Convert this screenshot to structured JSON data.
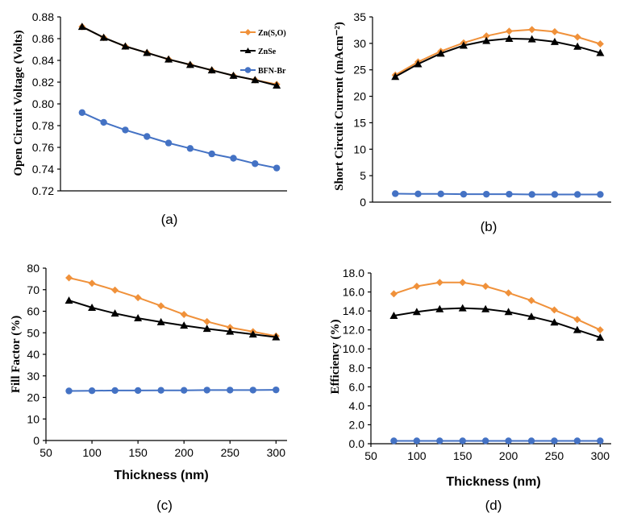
{
  "legend": {
    "zns": "Zn(S,O)",
    "znse": "ZnSe",
    "bfn": "BFN-Br"
  },
  "colors": {
    "zns": "#F0913A",
    "znse": "#000000",
    "bfn": "#4472C4"
  },
  "chart_data": [
    {
      "type": "line",
      "panel": "(a)",
      "ylabel": "Open Circuit Voltage (Volts)",
      "xlabel": "",
      "x": [
        75,
        100,
        125,
        150,
        175,
        200,
        225,
        250,
        275,
        300
      ],
      "xlim": [
        50,
        312
      ],
      "ylim": [
        0.72,
        0.88
      ],
      "yticks": [
        "0.72",
        "0.74",
        "0.76",
        "0.78",
        "0.80",
        "0.82",
        "0.84",
        "0.86",
        "0.88"
      ],
      "xticks": [],
      "series": [
        {
          "name": "Zn(S,O)",
          "values": [
            0.871,
            0.861,
            0.853,
            0.847,
            0.841,
            0.836,
            0.831,
            0.826,
            0.822,
            0.818
          ]
        },
        {
          "name": "ZnSe",
          "values": [
            0.871,
            0.861,
            0.853,
            0.847,
            0.841,
            0.836,
            0.831,
            0.826,
            0.822,
            0.817
          ]
        },
        {
          "name": "BFN-Br",
          "values": [
            0.792,
            0.783,
            0.776,
            0.77,
            0.764,
            0.759,
            0.754,
            0.75,
            0.745,
            0.741
          ]
        }
      ]
    },
    {
      "type": "line",
      "panel": "(b)",
      "ylabel": "Short Circuit Current (mAcm⁻²)",
      "xlabel": "",
      "x": [
        75,
        100,
        125,
        150,
        175,
        200,
        225,
        250,
        275,
        300
      ],
      "xlim": [
        50,
        312
      ],
      "ylim": [
        0,
        35
      ],
      "yticks": [
        "0",
        "5",
        "10",
        "15",
        "20",
        "25",
        "30",
        "35"
      ],
      "xticks": [],
      "series": [
        {
          "name": "Zn(S,O)",
          "values": [
            24.0,
            26.5,
            28.5,
            30.1,
            31.4,
            32.3,
            32.6,
            32.2,
            31.2,
            29.9
          ]
        },
        {
          "name": "ZnSe",
          "values": [
            23.7,
            26.1,
            28.1,
            29.6,
            30.5,
            30.9,
            30.8,
            30.3,
            29.4,
            28.2
          ]
        },
        {
          "name": "BFN-Br",
          "values": [
            1.6,
            1.55,
            1.55,
            1.5,
            1.5,
            1.5,
            1.45,
            1.45,
            1.45,
            1.45
          ]
        }
      ]
    },
    {
      "type": "line",
      "panel": "(c)",
      "ylabel": "Fill Factor (%)",
      "xlabel": "Thickness (nm)",
      "x": [
        75,
        100,
        125,
        150,
        175,
        200,
        225,
        250,
        275,
        300
      ],
      "xlim": [
        50,
        312
      ],
      "ylim": [
        0,
        80
      ],
      "yticks": [
        "0",
        "10",
        "20",
        "30",
        "40",
        "50",
        "60",
        "70",
        "80"
      ],
      "xticks": [
        "50",
        "100",
        "150",
        "200",
        "250",
        "300"
      ],
      "series": [
        {
          "name": "Zn(S,O)",
          "values": [
            75.5,
            73.0,
            69.8,
            66.3,
            62.5,
            58.5,
            55.2,
            52.5,
            50.5,
            48.5
          ]
        },
        {
          "name": "ZnSe",
          "values": [
            65.0,
            61.7,
            59.0,
            56.8,
            55.0,
            53.4,
            51.9,
            50.6,
            49.3,
            48.0
          ]
        },
        {
          "name": "BFN-Br",
          "values": [
            23.0,
            23.1,
            23.2,
            23.2,
            23.3,
            23.3,
            23.4,
            23.4,
            23.4,
            23.5
          ]
        }
      ]
    },
    {
      "type": "line",
      "panel": "(d)",
      "ylabel": "Efficiency (%)",
      "xlabel": "Thickness (nm)",
      "x": [
        75,
        100,
        125,
        150,
        175,
        200,
        225,
        250,
        275,
        300
      ],
      "xlim": [
        50,
        312
      ],
      "ylim": [
        0,
        18
      ],
      "yticks": [
        "0.0",
        "2.0",
        "4.0",
        "6.0",
        "8.0",
        "10.0",
        "12.0",
        "14.0",
        "16.0",
        "18.0"
      ],
      "xticks": [
        "50",
        "100",
        "150",
        "200",
        "250",
        "300"
      ],
      "series": [
        {
          "name": "Zn(S,O)",
          "values": [
            15.8,
            16.6,
            17.0,
            17.0,
            16.6,
            15.9,
            15.1,
            14.1,
            13.1,
            12.0
          ]
        },
        {
          "name": "ZnSe",
          "values": [
            13.5,
            13.9,
            14.2,
            14.3,
            14.2,
            13.9,
            13.4,
            12.8,
            12.0,
            11.2
          ]
        },
        {
          "name": "BFN-Br",
          "values": [
            0.3,
            0.3,
            0.3,
            0.3,
            0.3,
            0.3,
            0.3,
            0.3,
            0.3,
            0.3
          ]
        }
      ]
    }
  ]
}
